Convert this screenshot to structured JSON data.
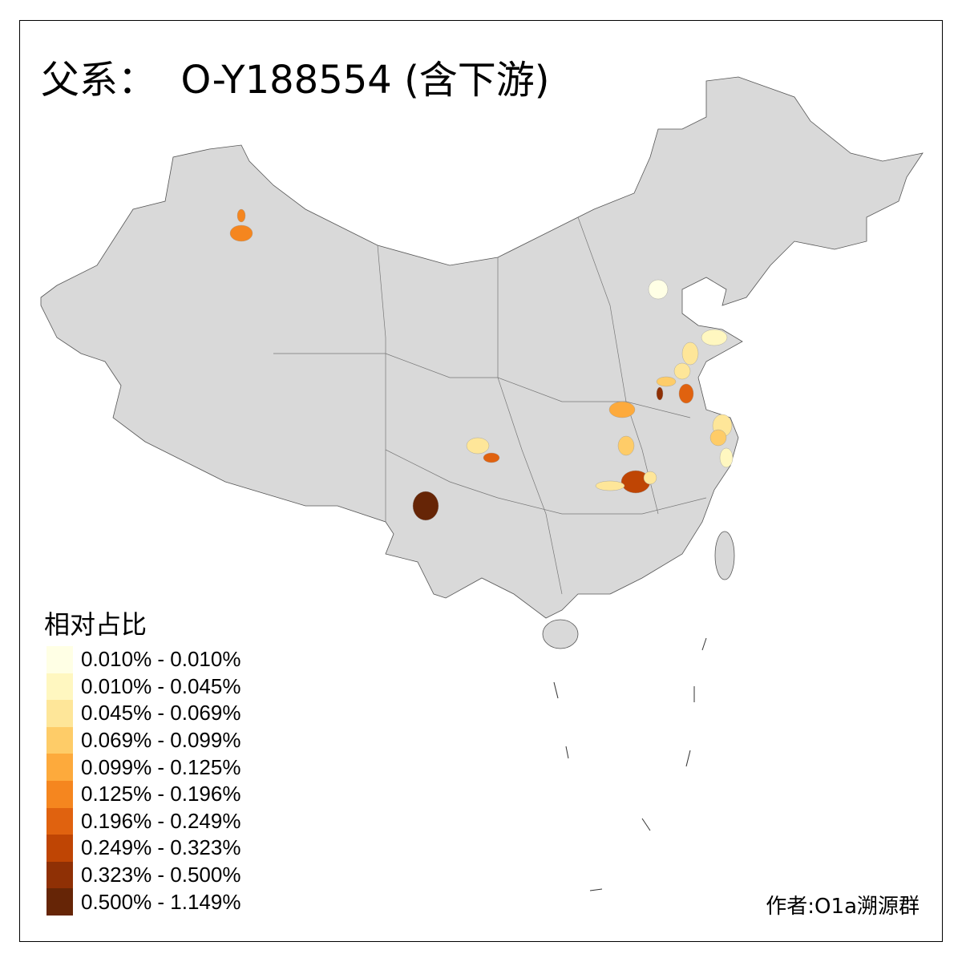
{
  "title": "父系：  O-Y188554 (含下游)",
  "legend": {
    "title": "相对占比",
    "items": [
      {
        "label": "0.010% - 0.010%",
        "color": "#FFFFE5"
      },
      {
        "label": "0.010% - 0.045%",
        "color": "#FFF7C0"
      },
      {
        "label": "0.045% - 0.069%",
        "color": "#FEE699"
      },
      {
        "label": "0.069% - 0.099%",
        "color": "#FECC68"
      },
      {
        "label": "0.099% - 0.125%",
        "color": "#FDAA3C"
      },
      {
        "label": "0.125% - 0.196%",
        "color": "#F5861F"
      },
      {
        "label": "0.196% - 0.249%",
        "color": "#E0620F"
      },
      {
        "label": "0.249% - 0.323%",
        "color": "#BF4504"
      },
      {
        "label": "0.323% - 0.500%",
        "color": "#8F3005"
      },
      {
        "label": "0.500% - 1.149%",
        "color": "#662506"
      }
    ]
  },
  "base_color": "#D9D9D9",
  "author": "作者:O1a溯源群"
}
